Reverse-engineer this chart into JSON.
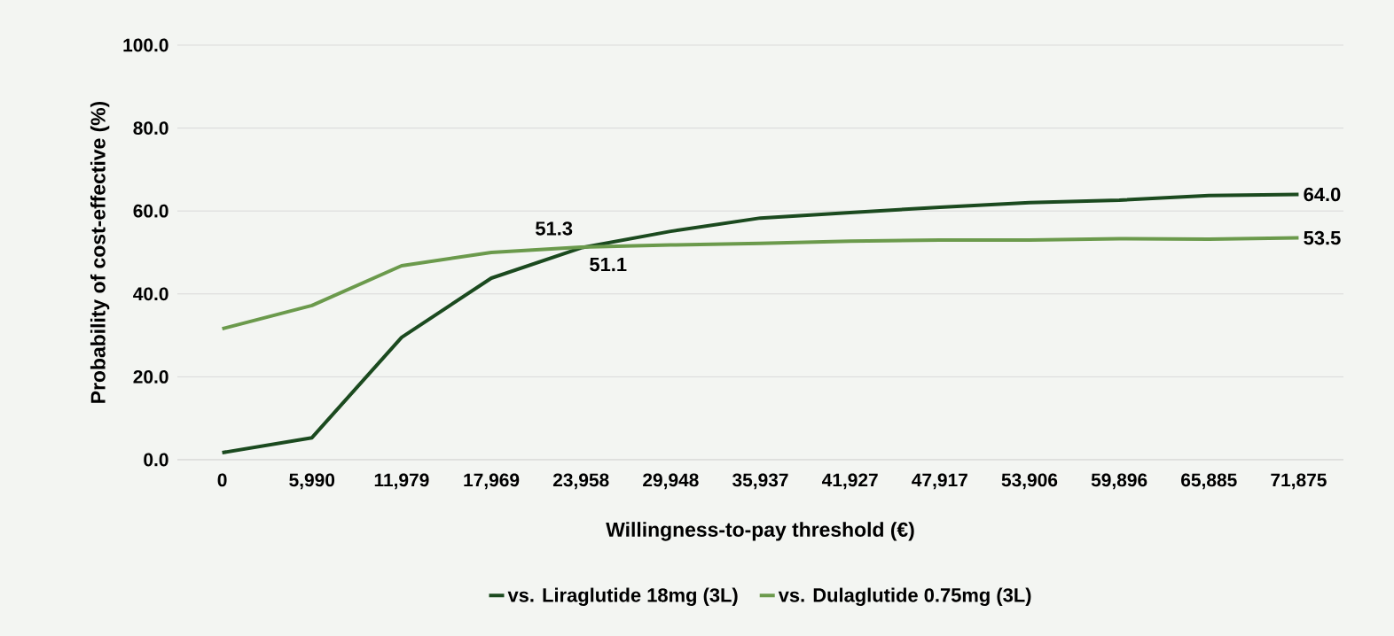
{
  "chart_data": {
    "type": "line",
    "xlabel": "Willingness-to-pay threshold (€)",
    "ylabel": "Probability of cost-effective (%)",
    "categories": [
      "0",
      "5,990",
      "11,979",
      "17,969",
      "23,958",
      "29,948",
      "35,937",
      "41,927",
      "47,917",
      "53,906",
      "59,896",
      "65,885",
      "71,875"
    ],
    "series": [
      {
        "name": "vs. Liraglutide 18mg (3L)",
        "color": "#1b4a1f",
        "values": [
          1.7,
          5.3,
          29.5,
          43.8,
          51.1,
          55.1,
          58.3,
          59.6,
          60.9,
          62.0,
          62.6,
          63.7,
          64.0
        ],
        "value_labels": [
          null,
          null,
          null,
          null,
          "51.1",
          null,
          null,
          null,
          null,
          null,
          null,
          null,
          "64.0"
        ]
      },
      {
        "name": "vs. Dulaglutide 0.75mg (3L)",
        "color": "#6b9a4c",
        "values": [
          31.6,
          37.2,
          46.8,
          50.0,
          51.3,
          51.8,
          52.2,
          52.7,
          53.0,
          53.0,
          53.3,
          53.2,
          53.5
        ],
        "value_labels": [
          null,
          null,
          null,
          null,
          "51.3",
          null,
          null,
          null,
          null,
          null,
          null,
          null,
          "53.5"
        ]
      }
    ],
    "ylim": [
      0,
      100
    ],
    "yticks": [
      {
        "value": 0,
        "label": "0.0"
      },
      {
        "value": 20,
        "label": "20.0"
      },
      {
        "value": 40,
        "label": "40.0"
      },
      {
        "value": 60,
        "label": "60.0"
      },
      {
        "value": 80,
        "label": "80.0"
      },
      {
        "value": 100,
        "label": "100.0"
      }
    ],
    "grid": "y",
    "legend": "bottom",
    "marker": "none",
    "line_style": "solid"
  }
}
